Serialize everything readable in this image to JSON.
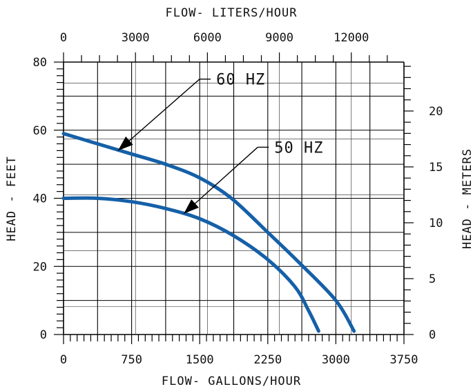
{
  "chart_data": {
    "type": "line",
    "title": "",
    "xlabel": "FLOW- GALLONS/HOUR",
    "x2label": "FLOW- LITERS/HOUR",
    "ylabel": "HEAD - FEET",
    "y2label": "HEAD - METERS",
    "xlim": [
      0,
      3750
    ],
    "ylim": [
      0,
      80
    ],
    "x2lim": [
      0,
      14195
    ],
    "y2lim": [
      0,
      24.38
    ],
    "x_ticks": [
      "0",
      "750",
      "1500",
      "2250",
      "3000",
      "3750"
    ],
    "y_ticks": [
      "0",
      "20",
      "40",
      "60",
      "80"
    ],
    "x2_ticks": [
      "0",
      "3000",
      "6000",
      "9000",
      "12000"
    ],
    "y2_ticks": [
      "0",
      "5",
      "10",
      "15",
      "20"
    ],
    "grid": true,
    "series": [
      {
        "name": "60 HZ",
        "color": "#1560a8",
        "points": [
          [
            0,
            59
          ],
          [
            375,
            56
          ],
          [
            750,
            53
          ],
          [
            1125,
            50
          ],
          [
            1500,
            46
          ],
          [
            1850,
            40
          ],
          [
            2250,
            30
          ],
          [
            2600,
            21
          ],
          [
            3000,
            10
          ],
          [
            3200,
            1
          ]
        ]
      },
      {
        "name": "50 HZ",
        "color": "#1560a8",
        "points": [
          [
            0,
            40
          ],
          [
            375,
            40
          ],
          [
            750,
            39
          ],
          [
            1125,
            37
          ],
          [
            1500,
            34
          ],
          [
            1875,
            29
          ],
          [
            2250,
            22
          ],
          [
            2550,
            14
          ],
          [
            2700,
            7
          ],
          [
            2810,
            1
          ]
        ]
      }
    ],
    "annotations": [
      {
        "text": "60 HZ",
        "series": "60 HZ",
        "at_x": 600,
        "at_y": 54,
        "label_x": 1560,
        "label_y": 75
      },
      {
        "text": "50 HZ",
        "series": "50 HZ",
        "at_x": 1325,
        "at_y": 35.5,
        "label_x": 2200,
        "label_y": 55
      }
    ]
  }
}
